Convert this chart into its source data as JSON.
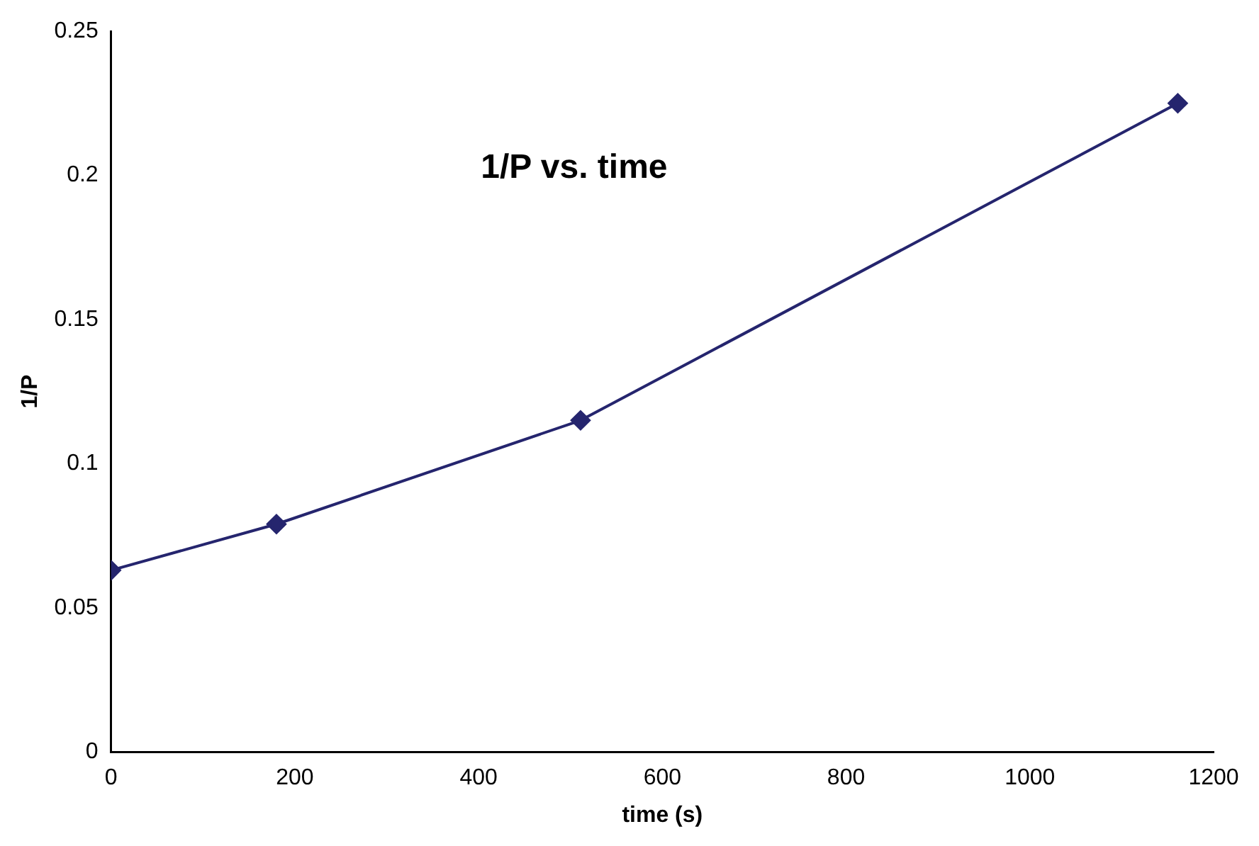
{
  "chart_data": {
    "type": "line",
    "title": "1/P vs. time",
    "xlabel": "time (s)",
    "ylabel": "1/P",
    "x": [
      0,
      180,
      511,
      1161
    ],
    "series": [
      {
        "color": "#25256e",
        "values": [
          0.063,
          0.079,
          0.115,
          0.225
        ]
      }
    ],
    "xlim": [
      0,
      1200
    ],
    "xticks": [
      0,
      200,
      400,
      600,
      800,
      1000,
      1200
    ],
    "ylim": [
      0,
      0.25
    ],
    "yticks": [
      0,
      0.05,
      0.1,
      0.15,
      0.2,
      0.25
    ],
    "grid": false,
    "legend": false,
    "marker": "diamond",
    "line_style": "solid"
  }
}
